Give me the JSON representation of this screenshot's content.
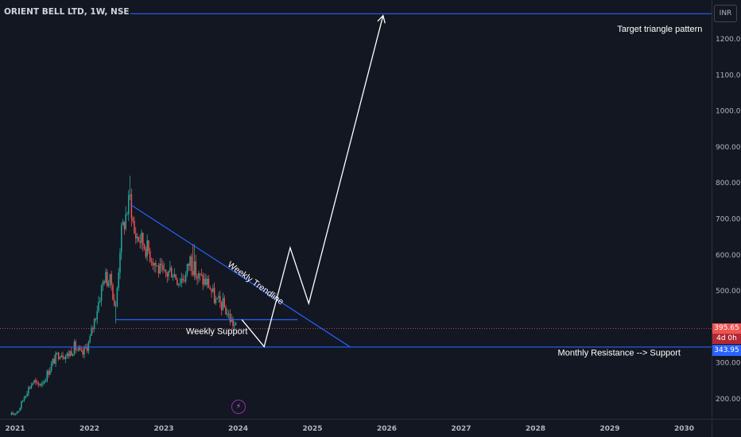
{
  "header": {
    "symbol": "ORIENT BELL LTD, 1W, NSE",
    "currency": "INR"
  },
  "price_tags": {
    "last_price": "395.65",
    "countdown": "4d 0h",
    "level": "343.95"
  },
  "colors": {
    "background": "#131722",
    "up": "#26a69a",
    "down": "#ef5350",
    "lines": "#2962ff",
    "arrow": "#ffffff",
    "last_price": "#ef5350",
    "level_tag": "#2962ff"
  },
  "chart_data": {
    "type": "candlestick",
    "title": "ORIENT BELL LTD, 1W, NSE",
    "x_range": [
      2020.95,
      2030.25
    ],
    "y_range": [
      150,
      1300
    ],
    "y_scale": "linear",
    "x_ticks": [
      "2021",
      "2022",
      "2023",
      "2024",
      "2025",
      "2026",
      "2027",
      "2028",
      "2029",
      "2030"
    ],
    "y_ticks": [
      "200.00",
      "300.00",
      "400.00",
      "500.00",
      "600.00",
      "700.00",
      "800.00",
      "900.00",
      "1000.00",
      "1100.00",
      "1200.00"
    ],
    "grid": false,
    "close_path": [
      [
        2020.95,
        155
      ],
      [
        2021.05,
        170
      ],
      [
        2021.15,
        220
      ],
      [
        2021.25,
        250
      ],
      [
        2021.3,
        235
      ],
      [
        2021.4,
        255
      ],
      [
        2021.5,
        300
      ],
      [
        2021.6,
        330
      ],
      [
        2021.7,
        320
      ],
      [
        2021.8,
        345
      ],
      [
        2021.9,
        320
      ],
      [
        2022.0,
        360
      ],
      [
        2022.1,
        450
      ],
      [
        2022.2,
        540
      ],
      [
        2022.3,
        520
      ],
      [
        2022.35,
        440
      ],
      [
        2022.42,
        650
      ],
      [
        2022.5,
        720
      ],
      [
        2022.55,
        760
      ],
      [
        2022.6,
        660
      ],
      [
        2022.7,
        640
      ],
      [
        2022.8,
        610
      ],
      [
        2022.9,
        570
      ],
      [
        2023.0,
        540
      ],
      [
        2023.1,
        560
      ],
      [
        2023.2,
        530
      ],
      [
        2023.3,
        545
      ],
      [
        2023.35,
        590
      ],
      [
        2023.45,
        540
      ],
      [
        2023.6,
        520
      ],
      [
        2023.7,
        470
      ],
      [
        2023.8,
        460
      ],
      [
        2023.9,
        420
      ],
      [
        2023.98,
        395.65
      ]
    ],
    "events": [
      {
        "date": 2022.55,
        "high": 820
      },
      {
        "date": 2022.35,
        "low": 410
      },
      {
        "date": 2023.4,
        "high": 630
      }
    ],
    "lines": [
      {
        "label": "Target triangle pattern",
        "kind": "horizontal",
        "y": 1270,
        "x_from": 2022.55
      },
      {
        "label": "Monthly Resistance --> Support",
        "kind": "horizontal",
        "y": 343.95
      },
      {
        "label": "Weekly Support",
        "kind": "horizontal",
        "y": 420,
        "x_from": 2022.35,
        "x_to": 2024.8
      },
      {
        "label": "Weekly Trendline",
        "kind": "trendline",
        "from": [
          2022.55,
          740
        ],
        "to": [
          2025.5,
          345
        ]
      }
    ],
    "projection": [
      [
        2024.05,
        420
      ],
      [
        2024.35,
        345
      ],
      [
        2024.7,
        620
      ],
      [
        2024.95,
        465
      ],
      [
        2025.95,
        1265
      ]
    ],
    "annotations": [
      {
        "text": "Target triangle pattern",
        "x": 2029.1,
        "y": 1220
      },
      {
        "text": "Monthly Resistance --> Support",
        "x": 2028.3,
        "y": 320
      },
      {
        "text": "Weekly Support",
        "x": 2023.3,
        "y": 380
      },
      {
        "text": "Weekly Trendline",
        "x": 2023.85,
        "y": 570,
        "angle": 36
      }
    ]
  }
}
